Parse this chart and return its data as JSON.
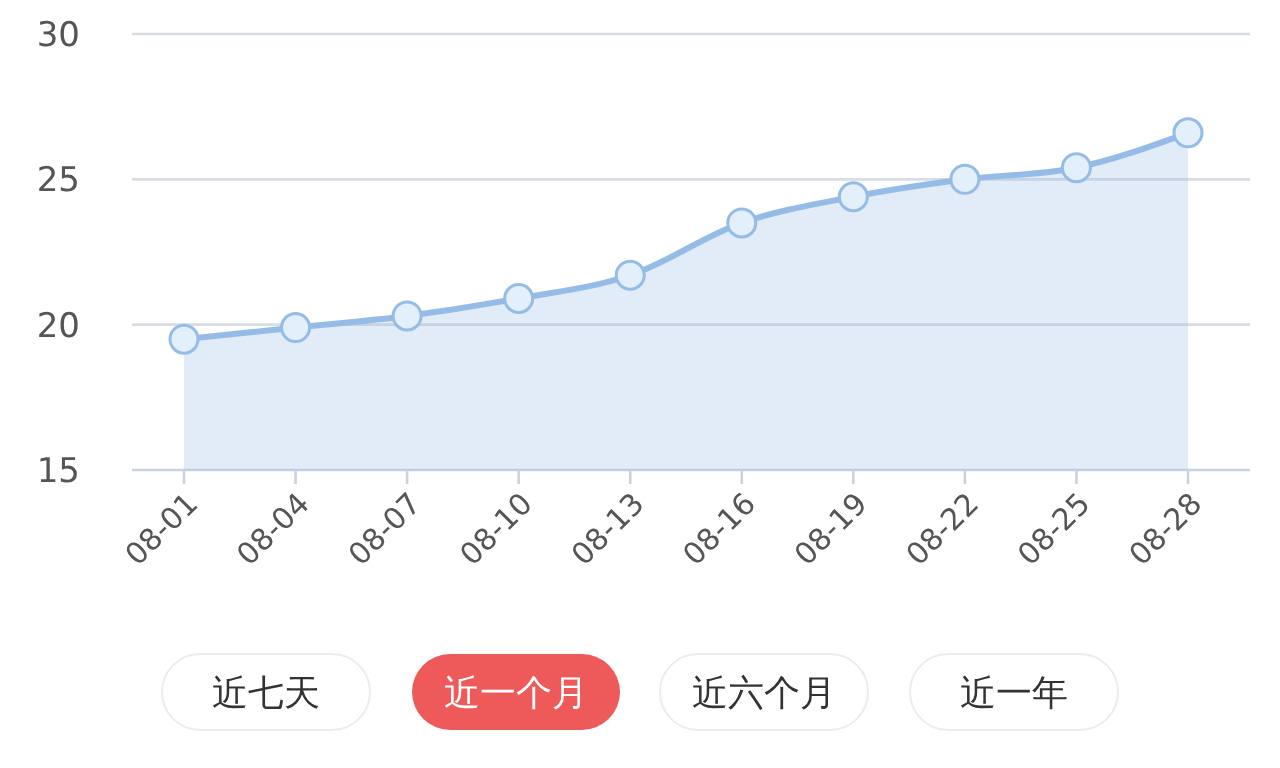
{
  "chart_data": {
    "type": "area",
    "categories": [
      "08-01",
      "08-04",
      "08-07",
      "08-10",
      "08-13",
      "08-16",
      "08-19",
      "08-22",
      "08-25",
      "08-28"
    ],
    "series": [
      {
        "color": "#94bce6",
        "values": [
          19.5,
          19.9,
          20.3,
          20.9,
          21.7,
          23.5,
          24.4,
          25.0,
          25.4,
          26.6
        ]
      }
    ],
    "ylim": [
      15,
      30
    ],
    "yticks": [
      15,
      20,
      25,
      30
    ],
    "grid": "y",
    "marker": "circle",
    "annotations": [
      "近七天",
      "近一个月",
      "近六个月",
      "近一年"
    ]
  }
}
